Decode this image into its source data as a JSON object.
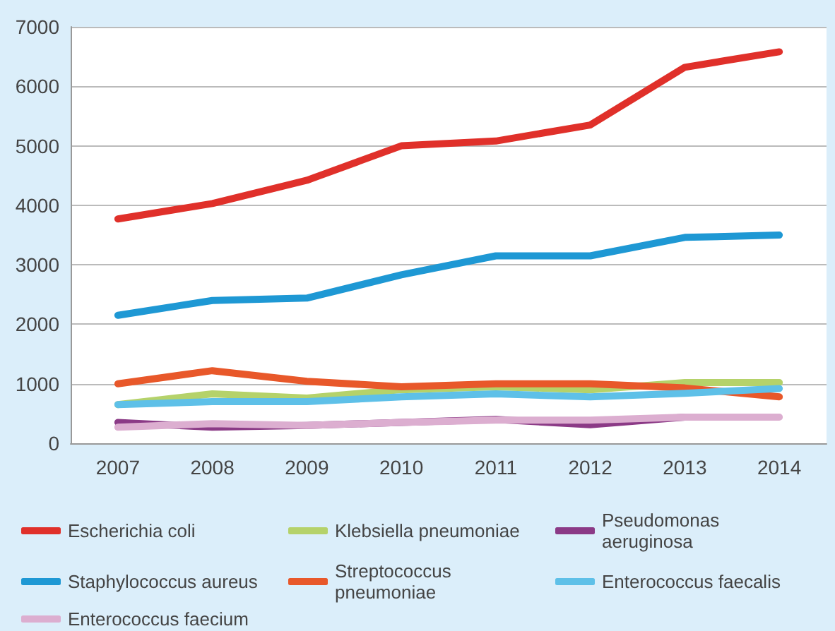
{
  "chart_data": {
    "type": "line",
    "categories": [
      "2007",
      "2008",
      "2009",
      "2010",
      "2011",
      "2012",
      "2013",
      "2014"
    ],
    "ylim": [
      0,
      7000
    ],
    "yticks": [
      0,
      1000,
      2000,
      3000,
      4000,
      5000,
      6000,
      7000
    ],
    "grid": "y",
    "legend": "bottom",
    "marker": "none",
    "line_style": "solid",
    "series": [
      {
        "name": "Escherichia coli",
        "color": "#e0302a",
        "values": [
          3770,
          4030,
          4420,
          5000,
          5080,
          5350,
          6320,
          6580
        ]
      },
      {
        "name": "Klebsiella pneumoniae",
        "color": "#b5d26a",
        "values": [
          650,
          830,
          760,
          900,
          950,
          900,
          1020,
          1020
        ]
      },
      {
        "name": "Pseudomonas aeruginosa",
        "color": "#8b3a86",
        "values": [
          350,
          270,
          300,
          350,
          400,
          310,
          440,
          null
        ]
      },
      {
        "name": "Staphylococcus aureus",
        "color": "#1e98d4",
        "values": [
          2150,
          2400,
          2440,
          2830,
          3150,
          3150,
          3460,
          3500
        ]
      },
      {
        "name": "Streptococcus pneumoniae",
        "color": "#e8582a",
        "values": [
          1000,
          1220,
          1040,
          950,
          1000,
          1000,
          930,
          780
        ]
      },
      {
        "name": "Enterococcus faecalis",
        "color": "#5ec0e8",
        "values": [
          650,
          700,
          700,
          780,
          830,
          780,
          840,
          920
        ]
      },
      {
        "name": "Enterococcus faecium",
        "color": "#dcaed0",
        "values": [
          270,
          330,
          300,
          350,
          390,
          390,
          440,
          440
        ]
      }
    ]
  }
}
